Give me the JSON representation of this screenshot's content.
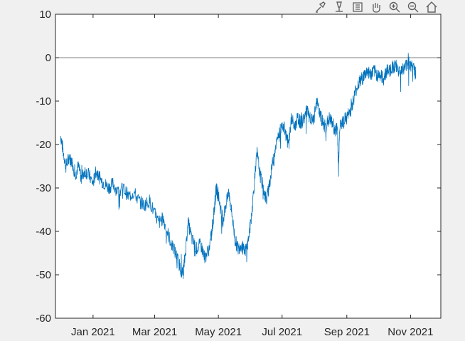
{
  "toolbar": {
    "icons": [
      "brush-icon",
      "data-tip-icon",
      "legend-icon",
      "pan-hand-icon",
      "zoom-in-icon",
      "zoom-out-icon",
      "home-icon"
    ]
  },
  "colors": {
    "figure_bg": "#f0f0f0",
    "axes_bg": "#ffffff",
    "series": "#0072bd",
    "zero_line": "#808080",
    "axis": "#262626"
  },
  "chart_data": {
    "type": "line",
    "title": "",
    "xlabel": "",
    "ylabel": "",
    "ylim": [
      -60,
      10
    ],
    "xlim": [
      "2020-11-26",
      "2021-11-30"
    ],
    "grid": false,
    "legend": "none",
    "reference_line": {
      "y": 0
    },
    "y_ticks": [
      -60,
      -50,
      -40,
      -30,
      -20,
      -10,
      0,
      10
    ],
    "y_tick_labels": [
      "-60",
      "-50",
      "-40",
      "-30",
      "-20",
      "-10",
      "0",
      "10"
    ],
    "x_ticks": [
      "2021-01-01",
      "2021-03-01",
      "2021-05-01",
      "2021-07-01",
      "2021-09-01",
      "2021-11-01"
    ],
    "x_tick_labels": [
      "Jan 2021",
      "Mar 2021",
      "May 2021",
      "Jul 2021",
      "Sep 2021",
      "Nov 2021"
    ],
    "series": [
      {
        "x": [
          "2020-12-01",
          "2020-12-03",
          "2020-12-06",
          "2020-12-09",
          "2020-12-12",
          "2020-12-15",
          "2020-12-18",
          "2020-12-21",
          "2020-12-24",
          "2020-12-28",
          "2021-01-01",
          "2021-01-04",
          "2021-01-08",
          "2021-01-12",
          "2021-01-16",
          "2021-01-20",
          "2021-01-25",
          "2021-01-30",
          "2021-02-04",
          "2021-02-09",
          "2021-02-14",
          "2021-02-19",
          "2021-02-24",
          "2021-03-01",
          "2021-03-05",
          "2021-03-09",
          "2021-03-13",
          "2021-03-17",
          "2021-03-21",
          "2021-03-25",
          "2021-03-28",
          "2021-03-30",
          "2021-04-02",
          "2021-04-06",
          "2021-04-10",
          "2021-04-14",
          "2021-04-18",
          "2021-04-22",
          "2021-04-25",
          "2021-04-27",
          "2021-04-29",
          "2021-05-02",
          "2021-05-05",
          "2021-05-08",
          "2021-05-11",
          "2021-05-14",
          "2021-05-17",
          "2021-05-20",
          "2021-05-23",
          "2021-05-26",
          "2021-05-29",
          "2021-06-01",
          "2021-06-04",
          "2021-06-07",
          "2021-06-10",
          "2021-06-13",
          "2021-06-16",
          "2021-06-19",
          "2021-06-22",
          "2021-06-25",
          "2021-06-28",
          "2021-07-01",
          "2021-07-04",
          "2021-07-07",
          "2021-07-10",
          "2021-07-13",
          "2021-07-16",
          "2021-07-19",
          "2021-07-22",
          "2021-07-25",
          "2021-07-28",
          "2021-07-31",
          "2021-08-03",
          "2021-08-06",
          "2021-08-09",
          "2021-08-12",
          "2021-08-15",
          "2021-08-18",
          "2021-08-21",
          "2021-08-23",
          "2021-08-24",
          "2021-08-25",
          "2021-08-28",
          "2021-08-31",
          "2021-09-03",
          "2021-09-06",
          "2021-09-09",
          "2021-09-12",
          "2021-09-15",
          "2021-09-18",
          "2021-09-21",
          "2021-09-24",
          "2021-09-27",
          "2021-09-30",
          "2021-10-03",
          "2021-10-06",
          "2021-10-09",
          "2021-10-12",
          "2021-10-15",
          "2021-10-18",
          "2021-10-21",
          "2021-10-24",
          "2021-10-27",
          "2021-10-30",
          "2021-11-02",
          "2021-11-05",
          "2021-11-06"
        ],
        "values": [
          -18,
          -21,
          -25,
          -23,
          -24,
          -27,
          -25,
          -28,
          -26,
          -27,
          -29,
          -26,
          -28,
          -29,
          -30,
          -29,
          -31,
          -30,
          -32,
          -31,
          -33,
          -34,
          -33,
          -36,
          -38,
          -37,
          -40,
          -43,
          -45,
          -48,
          -50,
          -46,
          -38,
          -42,
          -44,
          -43,
          -46,
          -44,
          -40,
          -35,
          -30,
          -33,
          -38,
          -34,
          -31,
          -36,
          -42,
          -44,
          -43,
          -45,
          -43,
          -38,
          -30,
          -22,
          -27,
          -30,
          -33,
          -29,
          -24,
          -20,
          -18,
          -15,
          -17,
          -20,
          -14,
          -16,
          -14,
          -15,
          -14,
          -12,
          -15,
          -14,
          -10,
          -13,
          -15,
          -16,
          -14,
          -15,
          -17,
          -16,
          -26,
          -16,
          -15,
          -14,
          -13,
          -11,
          -8,
          -6,
          -5,
          -4,
          -3,
          -4,
          -3,
          -4,
          -4,
          -5,
          -3,
          -3,
          -2,
          -2,
          -3,
          -3,
          -2,
          -1,
          -2,
          -3,
          -4
        ]
      }
    ]
  }
}
